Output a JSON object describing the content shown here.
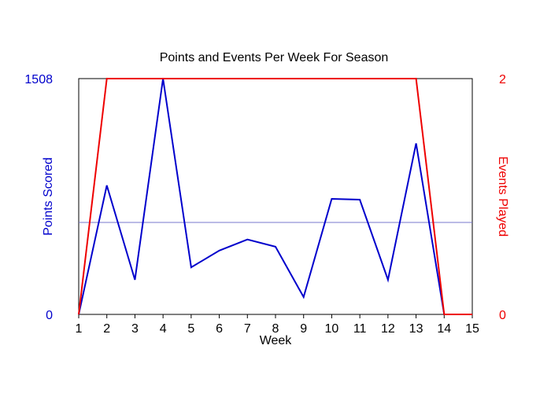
{
  "chart_data": {
    "type": "line",
    "title": "Points and Events Per Week For Season",
    "xlabel": "Week",
    "ylabel_left": "Points Scored",
    "ylabel_right": "Events Played",
    "x": [
      1,
      2,
      3,
      4,
      5,
      6,
      7,
      8,
      9,
      10,
      11,
      12,
      13,
      14,
      15
    ],
    "x_tick_labels": [
      "1",
      "2",
      "3",
      "4",
      "5",
      "6",
      "7",
      "8",
      "9",
      "10",
      "11",
      "12",
      "13",
      "14",
      "15"
    ],
    "y_left_ticks": [
      "0",
      "1508"
    ],
    "y_right_ticks": [
      "0",
      "2"
    ],
    "ylim_left": [
      0,
      1508
    ],
    "ylim_right": [
      0,
      2
    ],
    "reference_line_left": 588,
    "series": [
      {
        "name": "Points Scored",
        "axis": "left",
        "color": "#0000cc",
        "values": [
          0,
          825,
          221,
          1508,
          301,
          408,
          479,
          433,
          111,
          739,
          734,
          221,
          1094,
          0,
          0
        ]
      },
      {
        "name": "Events Played",
        "axis": "right",
        "color": "#ee0000",
        "values": [
          0,
          2,
          2,
          2,
          2,
          2,
          2,
          2,
          2,
          2,
          2,
          2,
          2,
          0,
          0
        ]
      }
    ],
    "grid": false,
    "legend": "none"
  }
}
